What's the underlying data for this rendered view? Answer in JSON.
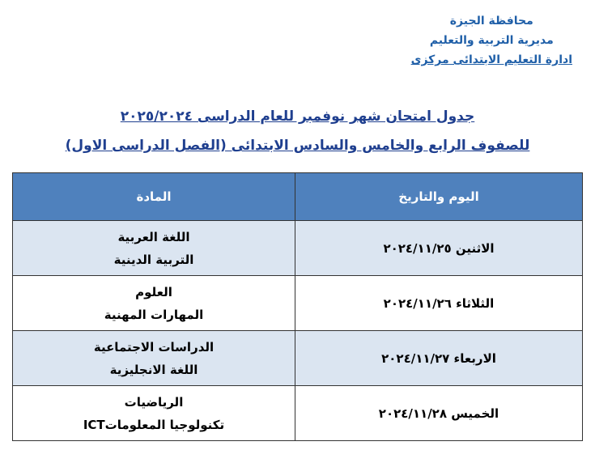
{
  "header": {
    "lines": [
      "محافظة الجيزة",
      "مديرية التربية والتعليم",
      "ادارة التعليم الابتدائى مركزى"
    ]
  },
  "title": {
    "line1": "جدول امتحان شهر نوفمبر للعام الدراسى ٢٠٢٥/٢٠٢٤",
    "line2": "للصفوف الرابع والخامس والسادس الابتدائى (الفصل الدراسى الاول)"
  },
  "table": {
    "columns": [
      "اليوم والتاريخ",
      "المادة"
    ],
    "rows": [
      {
        "day": "الاثنين ٢٠٢٤/١١/٢٥",
        "subjects": [
          "اللغة العربية",
          "التربية الدينية"
        ]
      },
      {
        "day": "الثلاثاء ٢٠٢٤/١١/٢٦",
        "subjects": [
          "العلوم",
          "المهارات المهنية"
        ]
      },
      {
        "day": "الاربعاء ٢٠٢٤/١١/٢٧",
        "subjects": [
          "الدراسات الاجتماعية",
          "اللغة الانجليزية"
        ]
      },
      {
        "day": "الخميس ٢٠٢٤/١١/٢٨",
        "subjects": [
          "الرياضيات",
          "تكنولوجيا المعلوماتICT"
        ]
      }
    ]
  }
}
